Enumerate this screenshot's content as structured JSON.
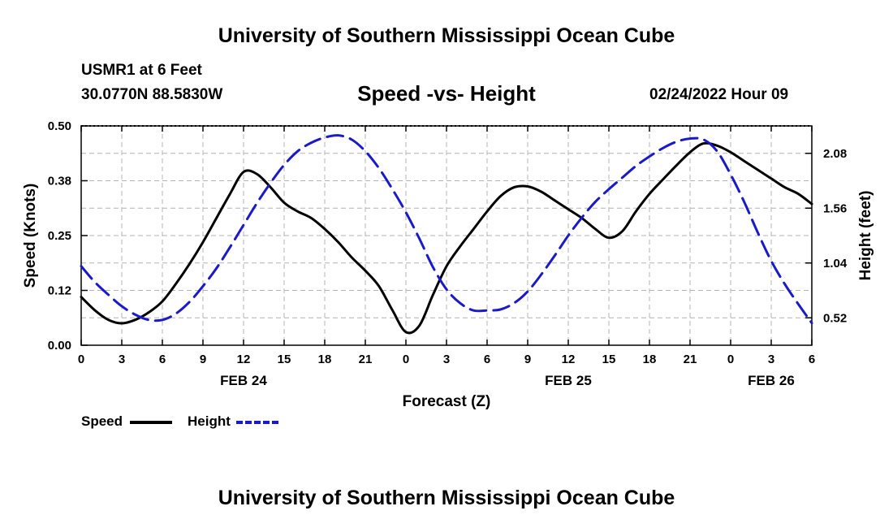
{
  "header": {
    "main_title": "University of Southern Mississippi Ocean Cube",
    "station": "USMR1 at 6 Feet",
    "coords": "30.0770N  88.5830W",
    "subtitle": "Speed -vs- Height",
    "datetime": "02/24/2022 Hour 09",
    "footer_title": "University of Southern Mississippi Ocean Cube"
  },
  "legend": {
    "speed_label": "Speed",
    "height_label": "Height"
  },
  "colors": {
    "speed": "#000000",
    "height": "#1a1ac8",
    "grid": "#b4b4b4"
  },
  "chart_data": {
    "type": "line",
    "xlabel": "Forecast (Z)",
    "ylabel_left": "Speed (Knots)",
    "ylabel_right": "Height (feet)",
    "x_range_hours": [
      0,
      54
    ],
    "x_ticks": [
      {
        "hour": 0,
        "label": "0"
      },
      {
        "hour": 3,
        "label": "3"
      },
      {
        "hour": 6,
        "label": "6"
      },
      {
        "hour": 9,
        "label": "9"
      },
      {
        "hour": 12,
        "label": "12"
      },
      {
        "hour": 15,
        "label": "15"
      },
      {
        "hour": 18,
        "label": "18"
      },
      {
        "hour": 21,
        "label": "21"
      },
      {
        "hour": 24,
        "label": "0"
      },
      {
        "hour": 27,
        "label": "3"
      },
      {
        "hour": 30,
        "label": "6"
      },
      {
        "hour": 33,
        "label": "9"
      },
      {
        "hour": 36,
        "label": "12"
      },
      {
        "hour": 39,
        "label": "15"
      },
      {
        "hour": 42,
        "label": "18"
      },
      {
        "hour": 45,
        "label": "21"
      },
      {
        "hour": 48,
        "label": "0"
      },
      {
        "hour": 51,
        "label": "3"
      },
      {
        "hour": 54,
        "label": "6"
      }
    ],
    "date_labels": [
      {
        "hour": 12,
        "label": "FEB 24"
      },
      {
        "hour": 36,
        "label": "FEB 25"
      },
      {
        "hour": 51,
        "label": "FEB 26"
      }
    ],
    "left_axis": {
      "range": [
        0,
        0.5
      ],
      "ticks": [
        {
          "value": 0.0,
          "label": "0.00"
        },
        {
          "value": 0.125,
          "label": "0.12"
        },
        {
          "value": 0.25,
          "label": "0.25"
        },
        {
          "value": 0.375,
          "label": "0.38"
        },
        {
          "value": 0.5,
          "label": "0.50"
        }
      ]
    },
    "right_axis": {
      "range": [
        0.26,
        2.34
      ],
      "ticks": [
        {
          "value": 0.52,
          "label": "0.52"
        },
        {
          "value": 1.04,
          "label": "1.04"
        },
        {
          "value": 1.56,
          "label": "1.56"
        },
        {
          "value": 2.08,
          "label": "2.08"
        }
      ]
    },
    "series": [
      {
        "name": "Speed",
        "axis": "left",
        "points": [
          [
            0,
            0.11
          ],
          [
            1,
            0.08
          ],
          [
            2,
            0.058
          ],
          [
            3,
            0.05
          ],
          [
            4,
            0.058
          ],
          [
            5,
            0.075
          ],
          [
            6,
            0.1
          ],
          [
            7,
            0.14
          ],
          [
            8,
            0.185
          ],
          [
            9,
            0.235
          ],
          [
            10,
            0.29
          ],
          [
            11,
            0.345
          ],
          [
            12,
            0.395
          ],
          [
            13,
            0.39
          ],
          [
            14,
            0.36
          ],
          [
            15,
            0.325
          ],
          [
            16,
            0.305
          ],
          [
            17,
            0.29
          ],
          [
            18,
            0.265
          ],
          [
            19,
            0.235
          ],
          [
            20,
            0.2
          ],
          [
            21,
            0.17
          ],
          [
            22,
            0.135
          ],
          [
            23,
            0.08
          ],
          [
            24,
            0.03
          ],
          [
            25,
            0.045
          ],
          [
            26,
            0.115
          ],
          [
            27,
            0.18
          ],
          [
            28,
            0.225
          ],
          [
            29,
            0.265
          ],
          [
            30,
            0.305
          ],
          [
            31,
            0.34
          ],
          [
            32,
            0.36
          ],
          [
            33,
            0.362
          ],
          [
            34,
            0.35
          ],
          [
            35,
            0.33
          ],
          [
            36,
            0.31
          ],
          [
            37,
            0.29
          ],
          [
            38,
            0.265
          ],
          [
            39,
            0.245
          ],
          [
            40,
            0.26
          ],
          [
            41,
            0.305
          ],
          [
            42,
            0.345
          ],
          [
            43,
            0.378
          ],
          [
            44,
            0.41
          ],
          [
            45,
            0.44
          ],
          [
            46,
            0.46
          ],
          [
            47,
            0.455
          ],
          [
            48,
            0.44
          ],
          [
            49,
            0.42
          ],
          [
            50,
            0.4
          ],
          [
            51,
            0.38
          ],
          [
            52,
            0.36
          ],
          [
            53,
            0.345
          ],
          [
            54,
            0.322
          ]
        ]
      },
      {
        "name": "Height",
        "axis": "right",
        "points": [
          [
            0,
            1.01
          ],
          [
            1,
            0.86
          ],
          [
            2,
            0.74
          ],
          [
            3,
            0.63
          ],
          [
            4,
            0.55
          ],
          [
            5,
            0.5
          ],
          [
            6,
            0.5
          ],
          [
            7,
            0.56
          ],
          [
            8,
            0.67
          ],
          [
            9,
            0.82
          ],
          [
            10,
            0.99
          ],
          [
            11,
            1.19
          ],
          [
            12,
            1.4
          ],
          [
            13,
            1.61
          ],
          [
            14,
            1.8
          ],
          [
            15,
            1.97
          ],
          [
            16,
            2.1
          ],
          [
            17,
            2.18
          ],
          [
            18,
            2.23
          ],
          [
            19,
            2.25
          ],
          [
            20,
            2.21
          ],
          [
            21,
            2.1
          ],
          [
            22,
            1.94
          ],
          [
            23,
            1.74
          ],
          [
            24,
            1.52
          ],
          [
            25,
            1.27
          ],
          [
            26,
            1.0
          ],
          [
            27,
            0.79
          ],
          [
            28,
            0.66
          ],
          [
            29,
            0.59
          ],
          [
            30,
            0.59
          ],
          [
            31,
            0.6
          ],
          [
            32,
            0.66
          ],
          [
            33,
            0.77
          ],
          [
            34,
            0.93
          ],
          [
            35,
            1.11
          ],
          [
            36,
            1.3
          ],
          [
            37,
            1.47
          ],
          [
            38,
            1.62
          ],
          [
            39,
            1.74
          ],
          [
            40,
            1.85
          ],
          [
            41,
            1.96
          ],
          [
            42,
            2.05
          ],
          [
            43,
            2.13
          ],
          [
            44,
            2.19
          ],
          [
            45,
            2.22
          ],
          [
            46,
            2.21
          ],
          [
            47,
            2.1
          ],
          [
            48,
            1.88
          ],
          [
            49,
            1.62
          ],
          [
            50,
            1.33
          ],
          [
            51,
            1.06
          ],
          [
            52,
            0.84
          ],
          [
            53,
            0.65
          ],
          [
            54,
            0.47
          ]
        ]
      }
    ]
  }
}
